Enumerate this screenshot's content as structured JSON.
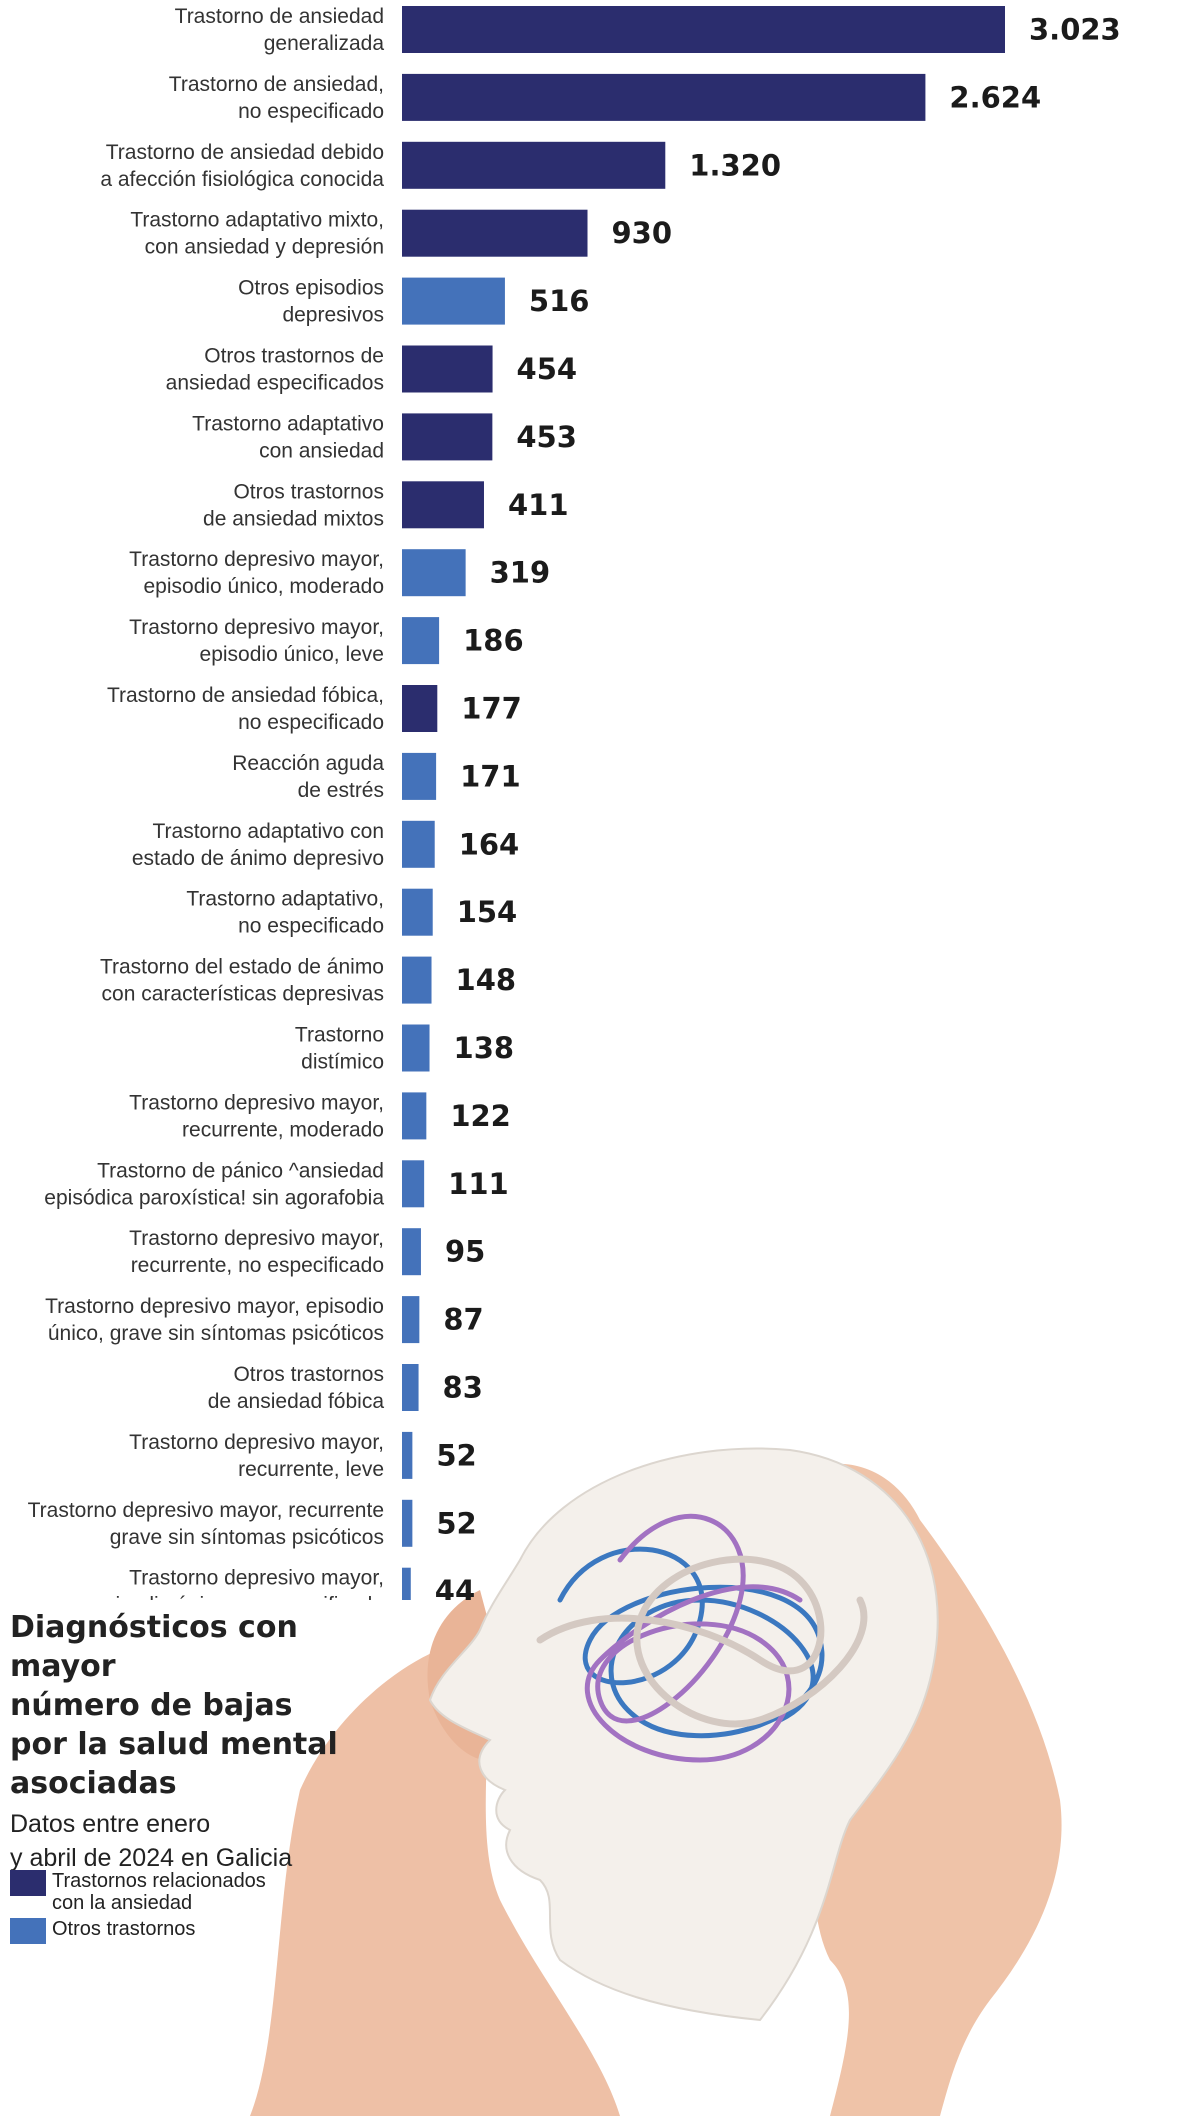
{
  "chart_data": {
    "type": "bar",
    "orientation": "horizontal",
    "title": "Diagnósticos con mayor\nnúmero de bajas\npor la salud mental\nasociadas",
    "subtitle": "Datos entre enero\ny abril de 2024 en Galicia",
    "legend": [
      {
        "name": "Trastornos relacionados\n con la ansiedad",
        "key": "ansiedad",
        "color": "#2b2d6e"
      },
      {
        "name": "Otros trastornos",
        "key": "otros",
        "color": "#4472ba"
      }
    ],
    "legend_placement": "bottom-left",
    "grid": false,
    "xlim": [
      0,
      3023
    ],
    "categories": [
      "Trastorno de ansiedad\ngeneralizada",
      "Trastorno de ansiedad,\nno especificado",
      "Trastorno de ansiedad debido\na afección fisiológica conocida",
      "Trastorno adaptativo mixto,\ncon ansiedad y depresión",
      "Otros episodios\ndepresivos",
      "Otros trastornos de\nansiedad especificados",
      "Trastorno adaptativo\ncon ansiedad",
      "Otros trastornos\nde ansiedad mixtos",
      "Trastorno depresivo mayor,\nepisodio único, moderado",
      "Trastorno depresivo mayor,\nepisodio único, leve",
      "Trastorno de ansiedad fóbica,\nno especificado",
      "Reacción aguda\nde estrés",
      "Trastorno adaptativo con\nestado de ánimo depresivo",
      "Trastorno adaptativo,\nno especificado",
      "Trastorno del estado de ánimo\ncon características depresivas",
      "Trastorno\ndistímico",
      "Trastorno depresivo mayor,\nrecurrente, moderado",
      "Trastorno de pánico ^ansiedad\nepisódica paroxística! sin agorafobia",
      "Trastorno depresivo mayor,\nrecurrente, no especificado",
      "Trastorno depresivo mayor, episodio\núnico, grave sin síntomas psicóticos",
      "Otros trastornos\nde ansiedad fóbica",
      "Trastorno depresivo mayor,\nrecurrente, leve",
      "Trastorno depresivo mayor, recurrente\ngrave sin síntomas psicóticos",
      "Trastorno depresivo mayor,\nepisodio único, no especificado"
    ],
    "values": [
      3023,
      2624,
      1320,
      930,
      516,
      454,
      453,
      411,
      319,
      186,
      177,
      171,
      164,
      154,
      148,
      138,
      122,
      111,
      95,
      87,
      83,
      52,
      52,
      44
    ],
    "value_labels": [
      "3.023",
      "2.624",
      "1.320",
      "930",
      "516",
      "454",
      "453",
      "411",
      "319",
      "186",
      "177",
      "171",
      "164",
      "154",
      "148",
      "138",
      "122",
      "111",
      "95",
      "87",
      "83",
      "52",
      "52",
      "44"
    ],
    "groups": [
      "ansiedad",
      "ansiedad",
      "ansiedad",
      "ansiedad",
      "otros",
      "ansiedad",
      "ansiedad",
      "ansiedad",
      "otros",
      "otros",
      "ansiedad",
      "otros",
      "otros",
      "otros",
      "otros",
      "otros",
      "otros",
      "otros",
      "otros",
      "otros",
      "otros",
      "otros",
      "otros",
      "otros"
    ]
  }
}
